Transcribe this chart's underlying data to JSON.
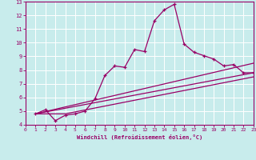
{
  "xlabel": "Windchill (Refroidissement éolien,°C)",
  "xlim": [
    0,
    23
  ],
  "ylim": [
    4,
    13
  ],
  "xticks": [
    0,
    1,
    2,
    3,
    4,
    5,
    6,
    7,
    8,
    9,
    10,
    11,
    12,
    13,
    14,
    15,
    16,
    17,
    18,
    19,
    20,
    21,
    22,
    23
  ],
  "yticks": [
    4,
    5,
    6,
    7,
    8,
    9,
    10,
    11,
    12,
    13
  ],
  "bg_color": "#c8ecec",
  "line_color": "#990066",
  "grid_color": "#ffffff",
  "series1_x": [
    1,
    2,
    3,
    4,
    5,
    6,
    7,
    8,
    9,
    10,
    11,
    12,
    13,
    14,
    15,
    16,
    17,
    18,
    19,
    20,
    21,
    22,
    23
  ],
  "series1_y": [
    4.8,
    5.1,
    4.3,
    4.7,
    4.8,
    5.0,
    5.9,
    7.6,
    8.3,
    8.2,
    9.5,
    9.35,
    11.6,
    12.4,
    12.8,
    9.9,
    9.3,
    9.05,
    8.8,
    8.3,
    8.4,
    7.8,
    7.8
  ],
  "series2_x": [
    1,
    23
  ],
  "series2_y": [
    4.8,
    8.5
  ],
  "series3_x": [
    1,
    23
  ],
  "series3_y": [
    4.8,
    7.8
  ],
  "series4_x": [
    1,
    4,
    23
  ],
  "series4_y": [
    4.8,
    4.8,
    7.5
  ]
}
